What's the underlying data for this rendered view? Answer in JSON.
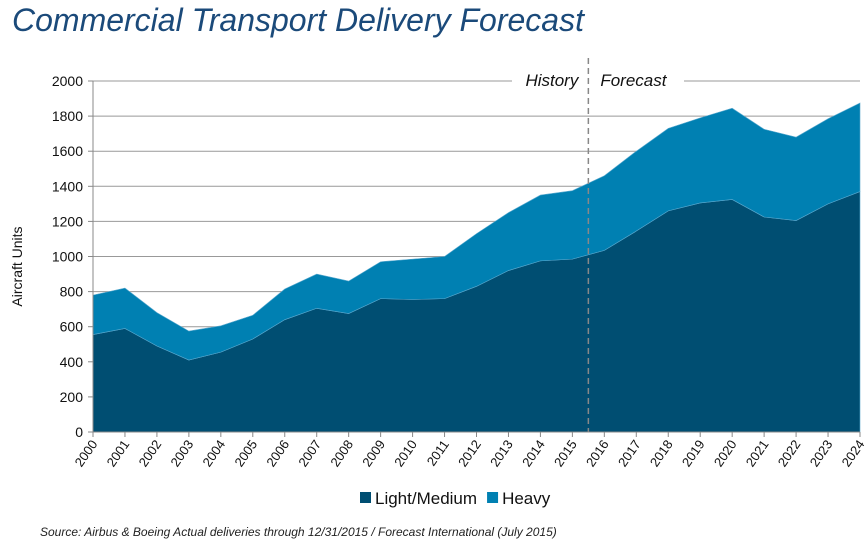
{
  "chart_data": {
    "type": "area",
    "stacked": true,
    "title": "Commercial Transport Delivery Forecast",
    "ylabel": "Aircraft Units",
    "xlabel": "",
    "ylim": [
      0,
      2000
    ],
    "yticks": [
      0,
      200,
      400,
      600,
      800,
      1000,
      1200,
      1400,
      1600,
      1800,
      2000
    ],
    "grid": true,
    "legend_position": "bottom",
    "categories": [
      "2000",
      "2001",
      "2002",
      "2003",
      "2004",
      "2005",
      "2006",
      "2007",
      "2008",
      "2009",
      "2010",
      "2011",
      "2012",
      "2013",
      "2014",
      "2015",
      "2016",
      "2017",
      "2018",
      "2019",
      "2020",
      "2021",
      "2022",
      "2023",
      "2024"
    ],
    "series": [
      {
        "name": "Light/Medium",
        "color": "#004e72",
        "values": [
          555,
          590,
          490,
          410,
          455,
          530,
          640,
          705,
          675,
          760,
          755,
          760,
          830,
          920,
          975,
          985,
          1035,
          1145,
          1260,
          1305,
          1325,
          1225,
          1205,
          1300,
          1370
        ]
      },
      {
        "name": "Heavy",
        "color": "#0080b2",
        "values": [
          225,
          230,
          190,
          165,
          150,
          135,
          175,
          195,
          185,
          210,
          230,
          240,
          300,
          330,
          375,
          390,
          425,
          455,
          470,
          485,
          520,
          500,
          475,
          485,
          505
        ]
      }
    ],
    "annotations": {
      "history_label": "History",
      "forecast_label": "Forecast",
      "divider_between": [
        "2015",
        "2016"
      ]
    },
    "source": "Source: Airbus & Boeing Actual deliveries through 12/31/2015 / Forecast International (July 2015)"
  }
}
